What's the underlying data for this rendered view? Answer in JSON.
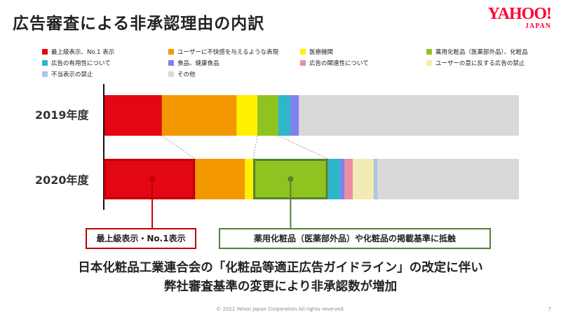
{
  "header": {
    "title": "広告審査による非承認理由の内訳",
    "logo_line1": "YAHOO!",
    "logo_line2": "JAPAN"
  },
  "colors": {
    "c1": "#e30613",
    "c2": "#f39800",
    "c3": "#fff100",
    "c4": "#8fc31f",
    "c5": "#2fb6c8",
    "c6": "#8080f0",
    "c7": "#e98fa0",
    "c8": "#f2ecb4",
    "c9": "#b0c4e0",
    "c10": "#d9d9d9",
    "callout1": "#c00000",
    "callout2": "#548235"
  },
  "chart_data": {
    "type": "bar",
    "orientation": "horizontal",
    "stacked": "percent",
    "categories": [
      "2019年度",
      "2020年度"
    ],
    "series": [
      {
        "name": "最上級表示、No.1 表示",
        "color": "#e30613",
        "values": [
          14,
          22
        ]
      },
      {
        "name": "ユーザーに不快感を与えるような表現",
        "color": "#f39800",
        "values": [
          18,
          12
        ]
      },
      {
        "name": "医療機関",
        "color": "#fff100",
        "values": [
          5,
          2
        ]
      },
      {
        "name": "薬用化粧品（医薬部外品）、化粧品",
        "color": "#8fc31f",
        "values": [
          5,
          18
        ]
      },
      {
        "name": "広告の有用性について",
        "color": "#2fb6c8",
        "values": [
          3,
          3
        ]
      },
      {
        "name": "食品、健康食品",
        "color": "#8080f0",
        "values": [
          2,
          1
        ]
      },
      {
        "name": "広告の関連性について",
        "color": "#e98fa0",
        "values": [
          0,
          2
        ]
      },
      {
        "name": "ユーザーの意に反する広告の禁止",
        "color": "#f2ecb4",
        "values": [
          0,
          5
        ]
      },
      {
        "name": "不当表示の禁止",
        "color": "#b0c4e0",
        "values": [
          0,
          1
        ]
      },
      {
        "name": "その他",
        "color": "#d9d9d9",
        "values": [
          53,
          34
        ]
      }
    ]
  },
  "callouts": [
    {
      "label": "最上級表示・No.1表示",
      "color": "#c00000"
    },
    {
      "label": "薬用化粧品（医薬部外品）や化粧品の掲載基準に抵触",
      "color": "#548235"
    }
  ],
  "caption": {
    "line1": "日本化粧品工業連合会の「化粧品等適正広告ガイドライン」の改定に伴い",
    "line2": "弊社審査基準の変更により非承認数が増加"
  },
  "footer": {
    "copyright": "© 2021 Yahoo Japan Corporation All rights reserved.",
    "page": "7"
  }
}
